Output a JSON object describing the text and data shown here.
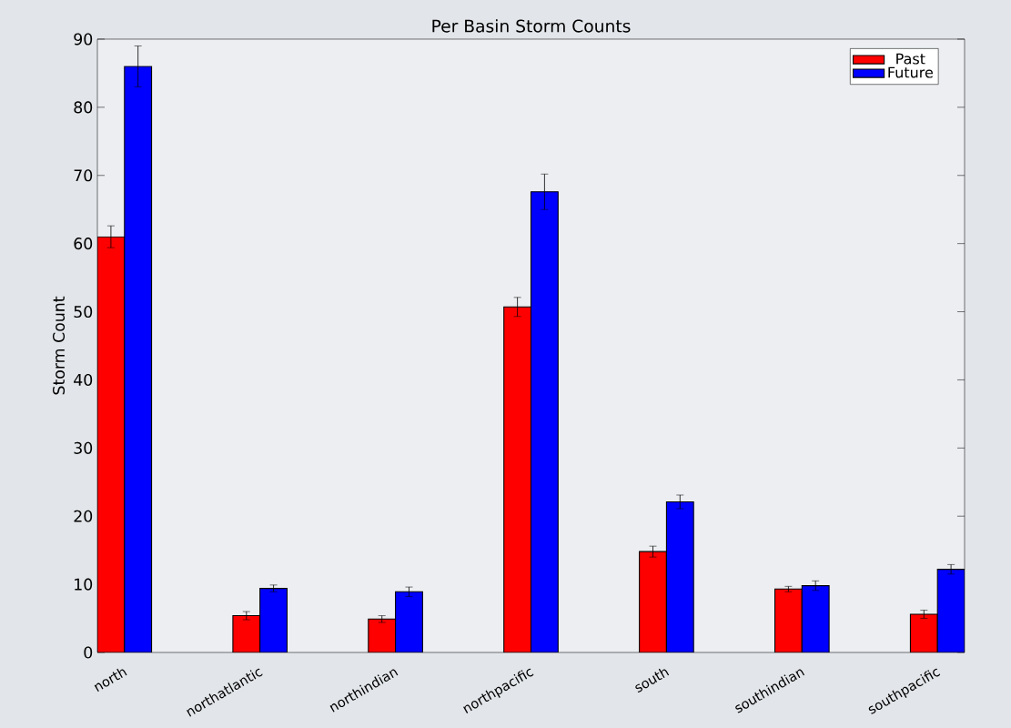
{
  "chart_data": {
    "type": "bar",
    "title": "Per Basin Storm Counts",
    "ylabel": "Storm Count",
    "categories": [
      "north",
      "northatlantic",
      "northindian",
      "northpacific",
      "south",
      "southindian",
      "southpacific"
    ],
    "series": [
      {
        "name": "Past",
        "color": "#ff0000",
        "values": [
          61.0,
          5.4,
          4.9,
          50.7,
          14.8,
          9.3,
          5.6
        ],
        "errors": [
          1.6,
          0.6,
          0.5,
          1.4,
          0.8,
          0.4,
          0.6
        ]
      },
      {
        "name": "Future",
        "color": "#0000ff",
        "values": [
          86.0,
          9.4,
          8.9,
          67.6,
          22.1,
          9.8,
          12.2
        ],
        "errors": [
          3.0,
          0.5,
          0.7,
          2.6,
          1.0,
          0.7,
          0.7
        ]
      }
    ],
    "ylim": [
      0,
      90
    ],
    "yticks": [
      0,
      10,
      20,
      30,
      40,
      50,
      60,
      70,
      80,
      90
    ],
    "legend": "top right",
    "grid": false
  }
}
